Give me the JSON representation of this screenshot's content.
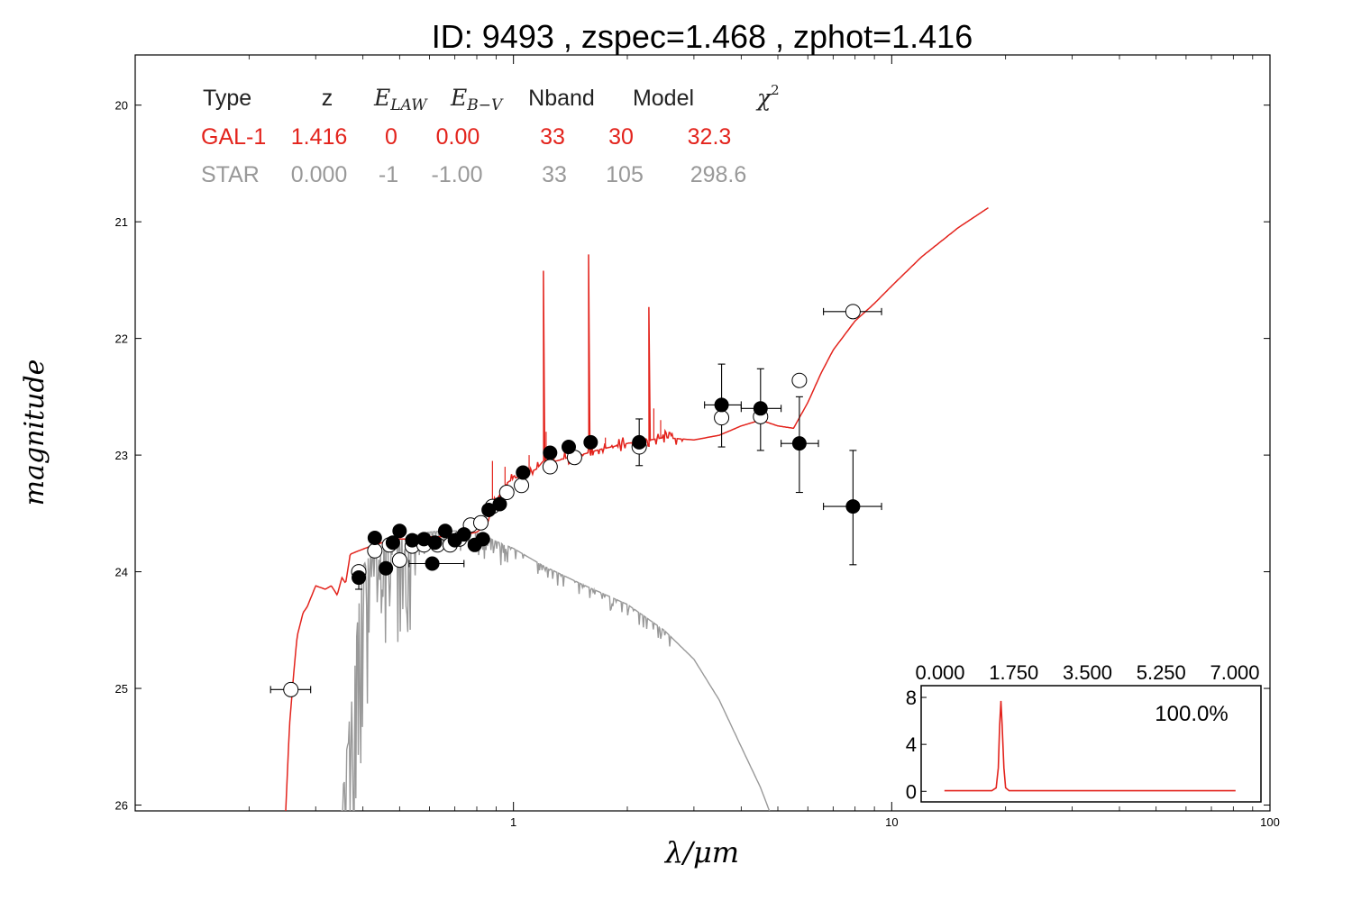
{
  "title": "ID:  9493  , zspec=1.468 , zphot=1.416",
  "colors": {
    "gal": "#e3231c",
    "star": "#999999",
    "axis": "#000000"
  },
  "chart_data": [
    {
      "type": "scatter",
      "xlabel": "λ/μm",
      "ylabel": "magnitude",
      "xscale": "log",
      "xlim": [
        0.1,
        100
      ],
      "ylim": [
        26.05,
        19.57
      ],
      "y_inverted": true,
      "grid": false,
      "x_ticks": [
        {
          "v": 1,
          "label": "1"
        },
        {
          "v": 10,
          "label": "10"
        },
        {
          "v": 100,
          "label": "100"
        }
      ],
      "y_ticks": [
        {
          "v": 20,
          "label": "20"
        },
        {
          "v": 21,
          "label": "21"
        },
        {
          "v": 22,
          "label": "22"
        },
        {
          "v": 23,
          "label": "23"
        },
        {
          "v": 24,
          "label": "24"
        },
        {
          "v": 25,
          "label": "25"
        },
        {
          "v": 26,
          "label": "26"
        }
      ],
      "legend_table": {
        "headers": [
          "Type",
          "z",
          "E_LAW",
          "E_B-V",
          "Nband",
          "Model",
          "χ²"
        ],
        "rows": [
          {
            "name": "GAL-1",
            "values": [
              "GAL-1",
              "1.416",
              "0",
              "0.00",
              "33",
              "30",
              "32.3"
            ]
          },
          {
            "name": "STAR",
            "values": [
              "STAR",
              "0.000",
              "-1",
              "-1.00",
              "33",
              "105",
              "298.6"
            ]
          }
        ]
      },
      "series": [
        {
          "name": "GAL-1",
          "kind": "line",
          "points": [
            [
              0.25,
              26.05
            ],
            [
              0.256,
              25.3
            ],
            [
              0.262,
              24.9
            ],
            [
              0.268,
              24.55
            ],
            [
              0.278,
              24.35
            ],
            [
              0.285,
              24.3
            ],
            [
              0.3,
              24.12
            ],
            [
              0.318,
              24.15
            ],
            [
              0.33,
              24.12
            ],
            [
              0.342,
              24.2
            ],
            [
              0.352,
              24.05
            ],
            [
              0.36,
              24.1
            ],
            [
              0.365,
              23.98
            ],
            [
              0.37,
              23.85
            ],
            [
              0.39,
              23.82
            ],
            [
              0.42,
              23.78
            ],
            [
              0.45,
              23.75
            ],
            [
              0.5,
              23.72
            ],
            [
              0.55,
              23.72
            ],
            [
              0.6,
              23.7
            ],
            [
              0.65,
              23.7
            ],
            [
              0.7,
              23.7
            ],
            [
              0.75,
              23.68
            ],
            [
              0.8,
              23.66
            ],
            [
              0.85,
              23.6
            ],
            [
              0.88,
              23.45
            ],
            [
              0.9,
              23.4
            ],
            [
              0.95,
              23.25
            ],
            [
              1.0,
              23.2
            ],
            [
              1.05,
              23.18
            ],
            [
              1.1,
              23.15
            ],
            [
              1.15,
              23.12
            ],
            [
              1.2,
              23.05
            ],
            [
              1.25,
              23.05
            ],
            [
              1.3,
              23.05
            ],
            [
              1.4,
              23.02
            ],
            [
              1.5,
              23.0
            ],
            [
              1.7,
              22.95
            ],
            [
              2.0,
              22.9
            ],
            [
              2.3,
              22.87
            ],
            [
              2.5,
              22.85
            ],
            [
              3.0,
              22.87
            ],
            [
              3.5,
              22.83
            ],
            [
              4.0,
              22.75
            ],
            [
              4.5,
              22.7
            ],
            [
              5.0,
              22.75
            ],
            [
              5.5,
              22.77
            ],
            [
              6.0,
              22.55
            ],
            [
              6.5,
              22.3
            ],
            [
              7.0,
              22.1
            ],
            [
              8.0,
              21.85
            ],
            [
              9.0,
              21.7
            ],
            [
              10.0,
              21.55
            ],
            [
              12.0,
              21.3
            ],
            [
              15.0,
              21.05
            ],
            [
              18.0,
              20.88
            ]
          ],
          "emission_lines": [
            {
              "x": 1.2,
              "peak": 21.42
            },
            {
              "x": 1.58,
              "peak": 21.28
            },
            {
              "x": 2.28,
              "peak": 21.73
            }
          ]
        },
        {
          "name": "STAR",
          "kind": "line",
          "points": [
            [
              0.35,
              26.05
            ],
            [
              0.37,
              25.2
            ],
            [
              0.38,
              24.7
            ],
            [
              0.39,
              24.3
            ],
            [
              0.4,
              23.95
            ],
            [
              0.42,
              23.85
            ],
            [
              0.46,
              23.77
            ],
            [
              0.5,
              23.72
            ],
            [
              0.55,
              23.68
            ],
            [
              0.6,
              23.66
            ],
            [
              0.65,
              23.65
            ],
            [
              0.7,
              23.65
            ],
            [
              0.75,
              23.65
            ],
            [
              0.8,
              23.67
            ],
            [
              0.85,
              23.7
            ],
            [
              0.9,
              23.74
            ],
            [
              1.0,
              23.8
            ],
            [
              1.2,
              23.95
            ],
            [
              1.5,
              24.1
            ],
            [
              2.0,
              24.28
            ],
            [
              2.5,
              24.5
            ],
            [
              3.0,
              24.75
            ],
            [
              3.5,
              25.1
            ],
            [
              4.0,
              25.5
            ],
            [
              4.5,
              25.85
            ],
            [
              4.75,
              26.05
            ]
          ]
        },
        {
          "name": "model magnitudes",
          "kind": "open-circles",
          "points": [
            {
              "x": 0.258,
              "y": 25.01,
              "xlo": 0.228,
              "xhi": 0.291
            },
            {
              "x": 0.39,
              "y": 24.0
            },
            {
              "x": 0.43,
              "y": 23.82
            },
            {
              "x": 0.47,
              "y": 23.77
            },
            {
              "x": 0.5,
              "y": 23.9
            },
            {
              "x": 0.54,
              "y": 23.78
            },
            {
              "x": 0.58,
              "y": 23.77
            },
            {
              "x": 0.63,
              "y": 23.77
            },
            {
              "x": 0.68,
              "y": 23.77
            },
            {
              "x": 0.72,
              "y": 23.72
            },
            {
              "x": 0.77,
              "y": 23.6
            },
            {
              "x": 0.82,
              "y": 23.58
            },
            {
              "x": 0.88,
              "y": 23.44
            },
            {
              "x": 0.96,
              "y": 23.32
            },
            {
              "x": 1.05,
              "y": 23.26
            },
            {
              "x": 1.25,
              "y": 23.1
            },
            {
              "x": 1.45,
              "y": 23.02
            },
            {
              "x": 2.15,
              "y": 22.93
            },
            {
              "x": 3.55,
              "y": 22.68
            },
            {
              "x": 4.5,
              "y": 22.67
            },
            {
              "x": 5.7,
              "y": 22.36
            },
            {
              "x": 7.9,
              "y": 21.77,
              "xlo": 6.6,
              "xhi": 9.4
            }
          ]
        },
        {
          "name": "observed magnitudes",
          "kind": "filled-circles",
          "points": [
            {
              "x": 0.39,
              "y": 24.05,
              "ylo": 24.15,
              "yhi": 23.95
            },
            {
              "x": 0.43,
              "y": 23.71
            },
            {
              "x": 0.46,
              "y": 23.97
            },
            {
              "x": 0.48,
              "y": 23.75
            },
            {
              "x": 0.5,
              "y": 23.65
            },
            {
              "x": 0.54,
              "y": 23.73
            },
            {
              "x": 0.58,
              "y": 23.72
            },
            {
              "x": 0.62,
              "y": 23.75
            },
            {
              "x": 0.61,
              "y": 23.93,
              "xlo": 0.53,
              "xhi": 0.74
            },
            {
              "x": 0.66,
              "y": 23.65
            },
            {
              "x": 0.7,
              "y": 23.73
            },
            {
              "x": 0.74,
              "y": 23.68
            },
            {
              "x": 0.79,
              "y": 23.77
            },
            {
              "x": 0.83,
              "y": 23.72
            },
            {
              "x": 0.86,
              "y": 23.47
            },
            {
              "x": 0.92,
              "y": 23.42
            },
            {
              "x": 1.06,
              "y": 23.15
            },
            {
              "x": 1.25,
              "y": 22.98
            },
            {
              "x": 1.4,
              "y": 22.93
            },
            {
              "x": 1.6,
              "y": 22.89
            },
            {
              "x": 2.15,
              "y": 22.89,
              "ylo": 23.09,
              "yhi": 22.69
            },
            {
              "x": 3.55,
              "y": 22.57,
              "ylo": 22.93,
              "yhi": 22.22,
              "xlo": 3.2,
              "xhi": 4.0
            },
            {
              "x": 4.5,
              "y": 22.6,
              "ylo": 22.96,
              "yhi": 22.26,
              "xlo": 4.0,
              "xhi": 5.1
            },
            {
              "x": 5.7,
              "y": 22.9,
              "ylo": 23.32,
              "yhi": 22.5,
              "xlo": 5.1,
              "xhi": 6.4
            },
            {
              "x": 7.9,
              "y": 23.44,
              "ylo": 23.94,
              "yhi": 22.96,
              "xlo": 6.6,
              "xhi": 9.4
            }
          ]
        }
      ]
    },
    {
      "type": "line",
      "inset": true,
      "xlim": [
        0,
        7
      ],
      "ylim": [
        -0.9,
        9.0
      ],
      "x_ticks": [
        {
          "v": 0,
          "label": "0.000"
        },
        {
          "v": 1.75,
          "label": "1.750"
        },
        {
          "v": 3.5,
          "label": "3.500"
        },
        {
          "v": 5.25,
          "label": "5.250"
        },
        {
          "v": 7.0,
          "label": "7.000"
        }
      ],
      "y_ticks": [
        {
          "v": 0,
          "label": "0"
        },
        {
          "v": 4,
          "label": "4"
        },
        {
          "v": 8,
          "label": "8"
        }
      ],
      "annotation": "100.0%",
      "series": [
        {
          "name": "PDZ",
          "points": [
            [
              0.1,
              0.05
            ],
            [
              1.2,
              0.05
            ],
            [
              1.3,
              0.3
            ],
            [
              1.35,
              2.0
            ],
            [
              1.38,
              5.5
            ],
            [
              1.41,
              7.7
            ],
            [
              1.44,
              5.5
            ],
            [
              1.48,
              2.0
            ],
            [
              1.52,
              0.3
            ],
            [
              1.6,
              0.05
            ],
            [
              6.85,
              0.05
            ]
          ]
        }
      ]
    }
  ]
}
